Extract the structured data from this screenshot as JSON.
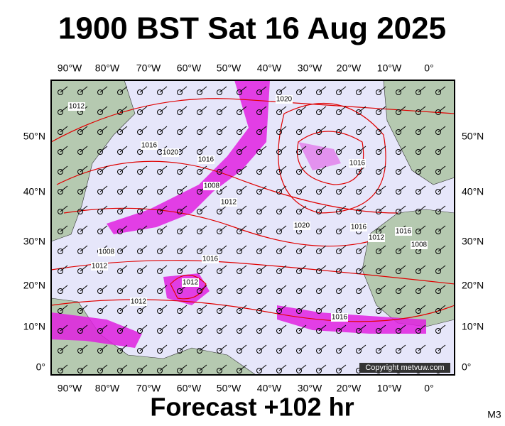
{
  "header": {
    "title": "1900 BST Sat 16 Aug 2025"
  },
  "map": {
    "lon_labels": [
      "90°W",
      "80°W",
      "70°W",
      "60°W",
      "50°W",
      "40°W",
      "30°W",
      "20°W",
      "10°W",
      "0°"
    ],
    "lat_labels": [
      "50°N",
      "40°N",
      "30°N",
      "20°N",
      "10°N",
      "0°"
    ],
    "isobar_labels": [
      "1012",
      "1016",
      "1020",
      "1016",
      "1008",
      "1012",
      "1020",
      "1016",
      "1020",
      "1016",
      "1012",
      "1008",
      "1016",
      "1012",
      "1008",
      "1016",
      "1012",
      "1012",
      "1016"
    ],
    "copyright": "Copyright metvuw.com"
  },
  "footer": {
    "forecast": "Forecast +102 hr",
    "model": "M3"
  }
}
